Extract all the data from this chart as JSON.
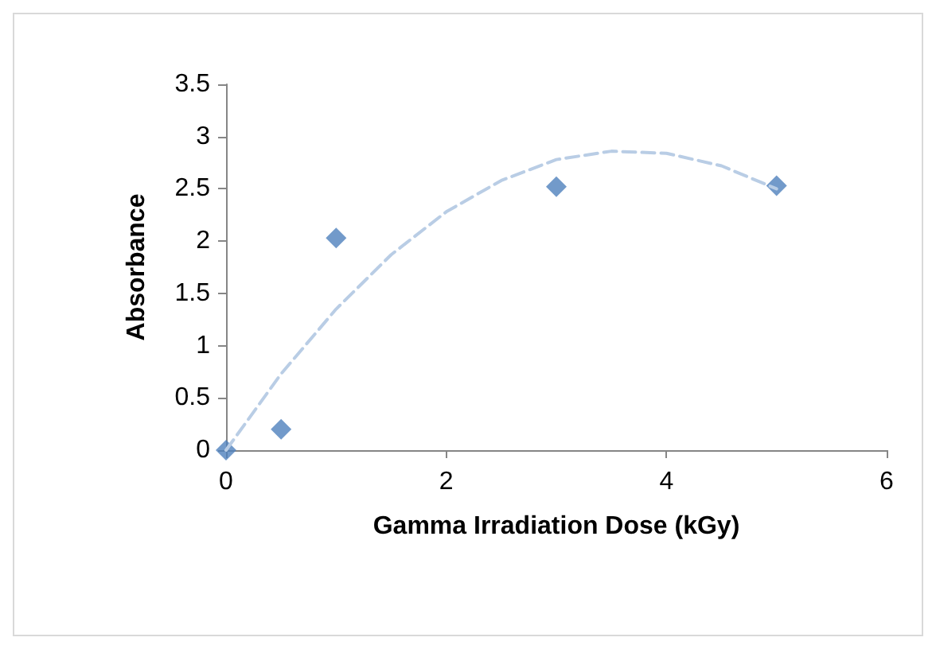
{
  "chart_data": {
    "type": "scatter",
    "xlabel": "Gamma Irradiation Dose (kGy)",
    "ylabel": "Absorbance",
    "x": [
      0,
      0.5,
      1,
      3,
      5
    ],
    "series": [
      {
        "color": "#4f81bd",
        "marker": "diamond",
        "values": [
          0,
          0.2,
          2.03,
          2.52,
          2.53
        ]
      },
      {
        "type": "line",
        "color": "#b9cde5",
        "line_style": "dashed",
        "marker": "none",
        "x": [
          0,
          0.5,
          1,
          1.5,
          2,
          2.5,
          3,
          3.5,
          4,
          4.5,
          5
        ],
        "values": [
          0,
          0.73,
          1.35,
          1.87,
          2.28,
          2.58,
          2.78,
          2.86,
          2.84,
          2.72,
          2.5
        ]
      }
    ],
    "xlim": [
      0,
      6
    ],
    "xticks": [
      0,
      2,
      4,
      6
    ],
    "ylim": [
      0,
      3.5
    ],
    "yticks": [
      0,
      0.5,
      1,
      1.5,
      2,
      2.5,
      3,
      3.5
    ],
    "grid": false
  }
}
